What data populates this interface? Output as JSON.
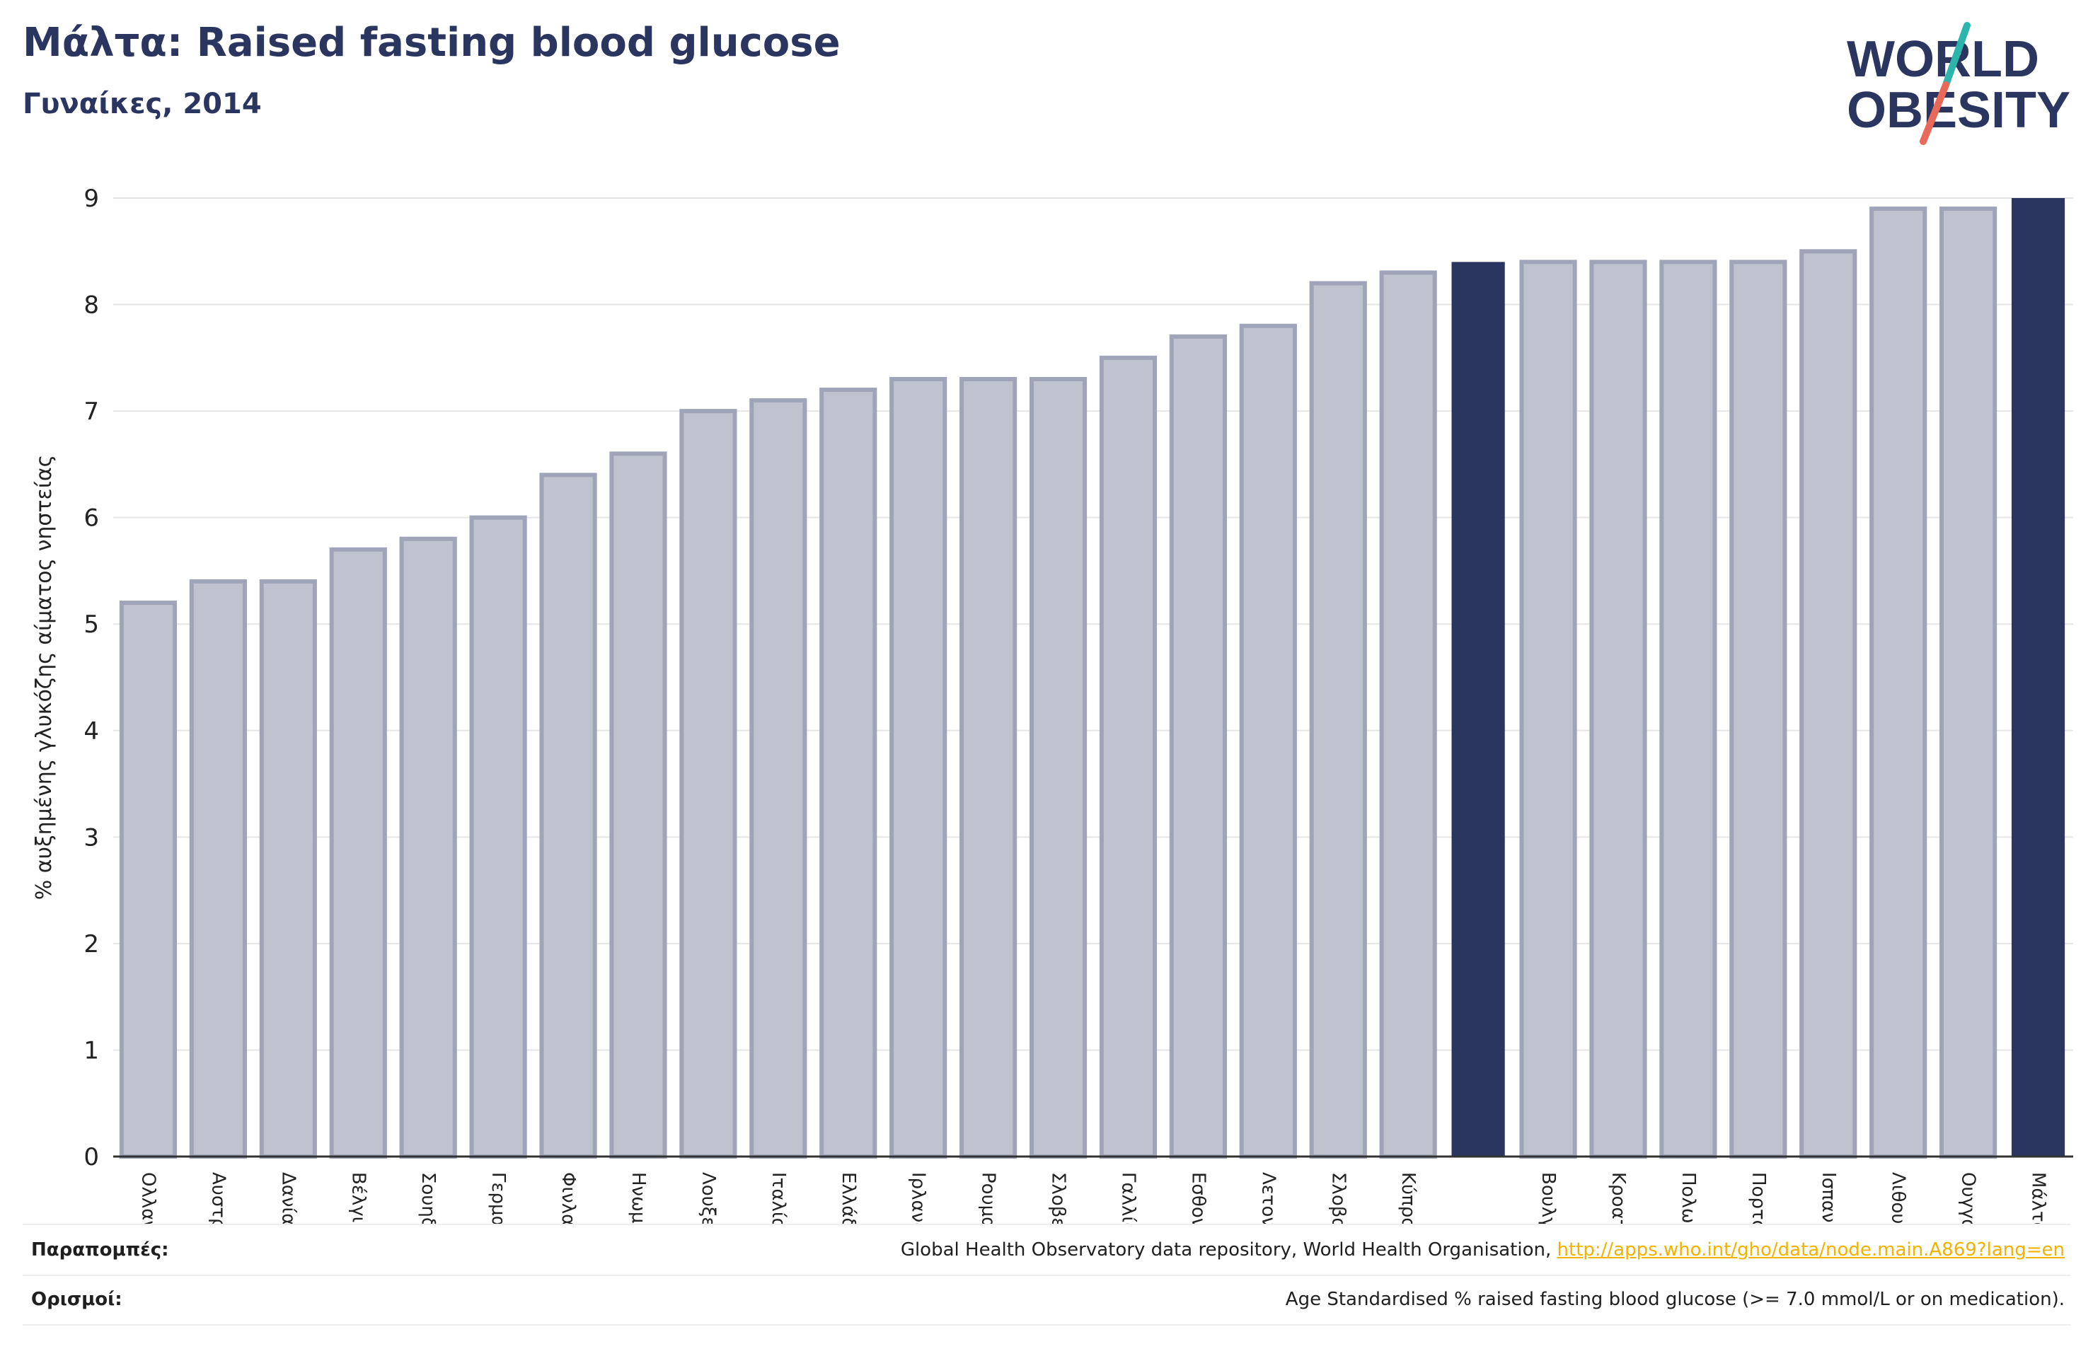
{
  "header": {
    "title": "Μάλτα: Raised fasting blood glucose",
    "subtitle": "Γυναίκες, 2014"
  },
  "logo": {
    "line1": "WORLD",
    "line2": "OBESITY",
    "slash_colors": [
      "#2bb5ad",
      "#e8695a"
    ],
    "text_color": "#2a3560"
  },
  "chart_data": {
    "type": "bar",
    "title": "Μάλτα: Raised fasting blood glucose",
    "subtitle": "Γυναίκες, 2014",
    "xlabel": "",
    "ylabel": "% αυξημένης γλυκόζης αίματος νηστείας",
    "ylim": [
      0,
      9
    ],
    "yticks": [
      0,
      1,
      2,
      3,
      4,
      5,
      6,
      7,
      8,
      9
    ],
    "grid": "horizontal",
    "categories": [
      "Ολλανδία",
      "Αυστρία",
      "Δανία",
      "Βέλγιο",
      "Σουηδία",
      "Γερμανία",
      "Φινλανδία",
      "Ηνωμένο Βασίλειο",
      "Λουξεμβούργο",
      "Ιταλία",
      "Ελλάδα",
      "Ιρλανδία",
      "Ρουμανία",
      "Σλοβενία",
      "Γαλλία",
      "Εσθονία",
      "Λετονία",
      "Σλοβακία",
      "Κύπρος",
      "",
      "Βουλγαρία",
      "Κροατία",
      "Πολωνία",
      "Πορτογαλία",
      "Ισπανία",
      "Λιθουανία",
      "Ουγγαρία",
      "Μάλτα"
    ],
    "values": [
      5.2,
      5.4,
      5.4,
      5.7,
      5.8,
      6.0,
      6.4,
      6.6,
      7.0,
      7.1,
      7.2,
      7.3,
      7.3,
      7.3,
      7.5,
      7.7,
      7.8,
      8.2,
      8.3,
      8.4,
      8.4,
      8.4,
      8.4,
      8.4,
      8.5,
      8.9,
      8.9,
      9.0
    ],
    "highlighted": [
      19,
      27
    ],
    "colors": {
      "bar": "#bfc2cf",
      "bar_edge": "#9fa4b8",
      "highlight": "#2a3560",
      "grid": "#e6e6e6",
      "axis": "#333333"
    }
  },
  "footer": {
    "sources_label": "Παραπομπές:",
    "sources_text": "Global Health Observatory data repository, World Health Organisation, ",
    "sources_link": "http://apps.who.int/gho/data/node.main.A869?lang=en",
    "definitions_label": "Ορισμοί:",
    "definitions_text": "Age Standardised % raised fasting blood glucose (>= 7.0 mmol/L or on medication)."
  }
}
